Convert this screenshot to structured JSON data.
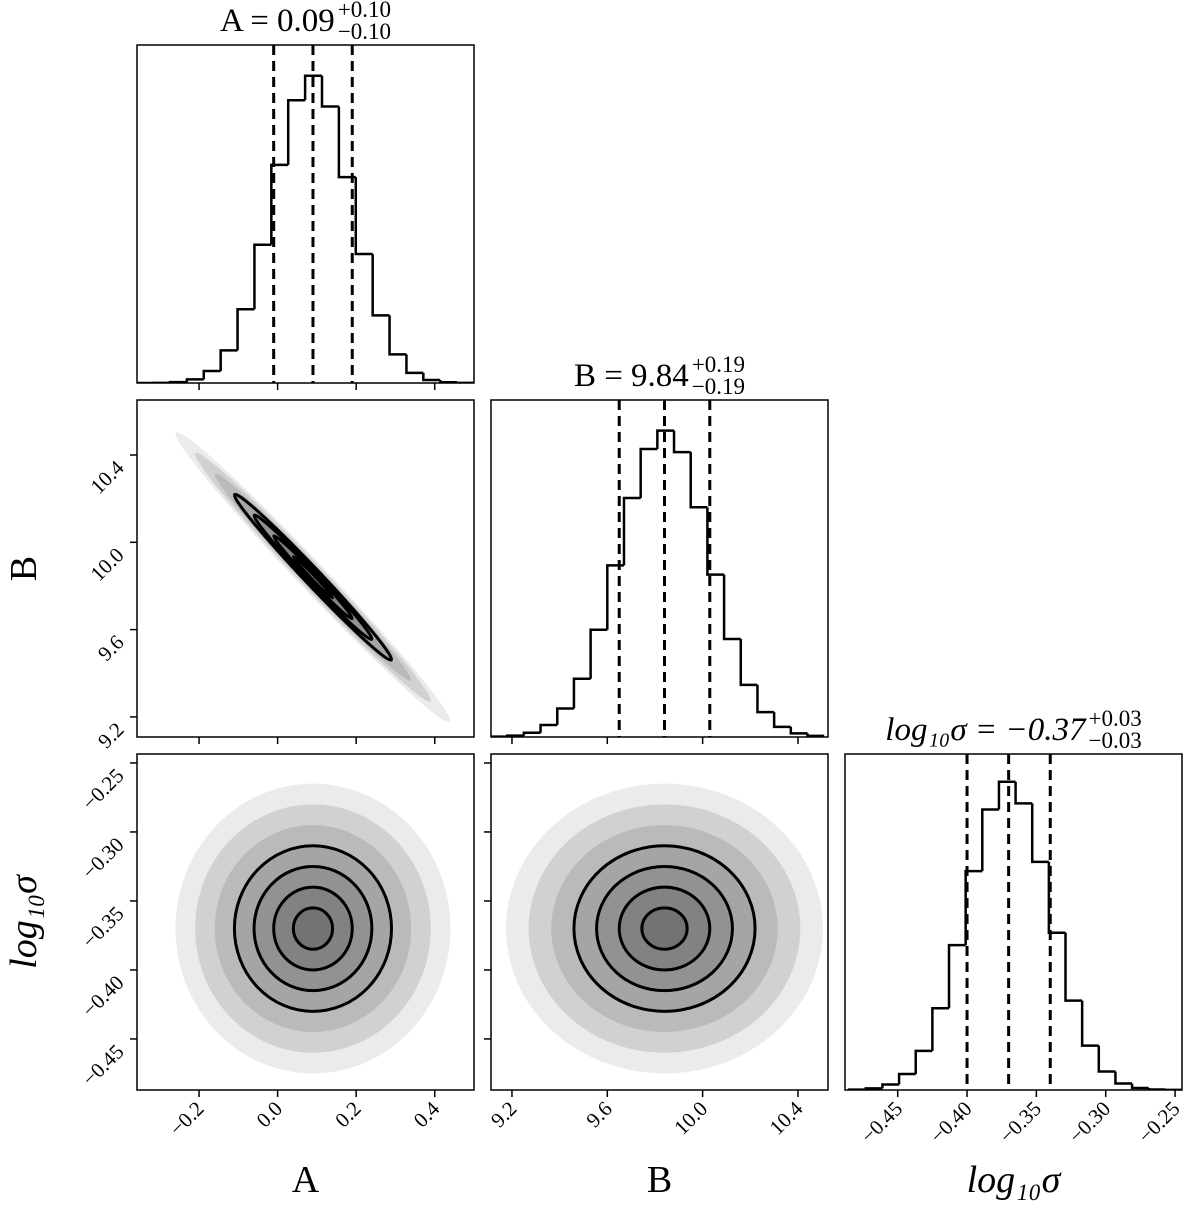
{
  "chart_data": [
    {
      "type": "histogram",
      "title": "A = 0.09",
      "title_plus": "+0.10",
      "title_minus": "−0.10",
      "bins": [
        -0.36,
        -0.317,
        -0.274,
        -0.231,
        -0.188,
        -0.145,
        -0.102,
        -0.059,
        -0.016,
        0.027,
        0.07,
        0.113,
        0.156,
        0.199,
        0.242,
        0.285,
        0.328,
        0.371,
        0.414,
        0.457,
        0.5
      ],
      "values": [
        0.0001,
        0.0006,
        0.003,
        0.012,
        0.039,
        0.106,
        0.24,
        0.45,
        0.71,
        0.92,
        1.0,
        0.9,
        0.67,
        0.42,
        0.22,
        0.093,
        0.033,
        0.0099,
        0.0024,
        0.0005
      ],
      "quantiles": [
        -0.01,
        0.09,
        0.19
      ],
      "xlim": [
        -0.358,
        0.5
      ],
      "ylim": [
        0,
        1.1
      ]
    },
    {
      "type": "contour",
      "x_mean": 0.09,
      "x_std": 0.1,
      "y_mean": 9.84,
      "y_std": 0.19,
      "correlation": -0.99,
      "levels": [
        0.5,
        1,
        1.5,
        2
      ],
      "density_levels": [
        3.5,
        3,
        2.5,
        2,
        1.5,
        1,
        0.5
      ],
      "xlim": [
        -0.358,
        0.5
      ],
      "ylim": [
        9.108,
        10.652
      ],
      "yticks": [
        9.2,
        9.6,
        {
          "value": 10.0,
          "label": "10.0"
        },
        10.4
      ],
      "ylabel": "B"
    },
    {
      "type": "histogram",
      "title": "B = 9.84",
      "title_plus": "+0.19",
      "title_minus": "−0.19",
      "bins": [
        9.11,
        9.18,
        9.25,
        9.32,
        9.39,
        9.46,
        9.53,
        9.6,
        9.67,
        9.74,
        9.81,
        9.88,
        9.95,
        10.02,
        10.09,
        10.16,
        10.23,
        10.3,
        10.37,
        10.44,
        10.51
      ],
      "values": [
        0.0012,
        0.0045,
        0.014,
        0.039,
        0.093,
        0.19,
        0.35,
        0.56,
        0.78,
        0.94,
        1.0,
        0.93,
        0.75,
        0.53,
        0.32,
        0.17,
        0.081,
        0.033,
        0.012,
        0.0038
      ],
      "quantiles": [
        9.65,
        9.84,
        10.03
      ],
      "xlim": [
        9.112,
        10.526
      ],
      "ylim": [
        0,
        1.1
      ]
    },
    {
      "type": "contour",
      "x_mean": 0.09,
      "x_std": 0.1,
      "y_mean": -0.37,
      "y_std": 0.03,
      "correlation": 0,
      "levels": [
        0.5,
        1,
        1.5,
        2
      ],
      "density_levels": [
        3.5,
        3,
        2.5,
        2,
        1.5,
        1,
        0.5
      ],
      "xlim": [
        -0.358,
        0.5
      ],
      "ylim": [
        -0.487,
        -0.2435
      ],
      "xticks": [
        {
          "value": -0.2,
          "label": "−0.2"
        },
        {
          "value": 0,
          "label": "0.0"
        },
        0.2,
        0.4
      ],
      "yticks": [
        {
          "value": -0.45,
          "label": "−0.45"
        },
        {
          "value": -0.4,
          "label": "−0.40"
        },
        {
          "value": -0.35,
          "label": "−0.35"
        },
        {
          "value": -0.3,
          "label": "−0.30"
        },
        {
          "value": -0.25,
          "label": "−0.25"
        }
      ],
      "xlabel": "A",
      "ylabel": "log₁₀σ"
    },
    {
      "type": "contour",
      "x_mean": 9.84,
      "x_std": 0.19,
      "y_mean": -0.37,
      "y_std": 0.03,
      "correlation": 0,
      "levels": [
        0.5,
        1,
        1.5,
        2
      ],
      "density_levels": [
        3.5,
        3,
        2.5,
        2,
        1.5,
        1,
        0.5
      ],
      "xlim": [
        9.112,
        10.526
      ],
      "ylim": [
        -0.487,
        -0.2435
      ],
      "xticks": [
        9.2,
        9.6,
        {
          "value": 10.0,
          "label": "10.0"
        },
        10.4
      ],
      "xlabel": "B"
    },
    {
      "type": "histogram",
      "title": "log₁₀σ = −0.37",
      "title_plus": "+0.03",
      "title_minus": "−0.03",
      "bins": [
        -0.485,
        -0.473,
        -0.461,
        -0.449,
        -0.437,
        -0.425,
        -0.413,
        -0.401,
        -0.389,
        -0.377,
        -0.365,
        -0.353,
        -0.341,
        -0.329,
        -0.317,
        -0.305,
        -0.293,
        -0.281,
        -0.269,
        -0.257,
        -0.245
      ],
      "values": [
        0.0014,
        0.0054,
        0.018,
        0.052,
        0.127,
        0.265,
        0.47,
        0.71,
        0.91,
        1.0,
        0.93,
        0.74,
        0.51,
        0.29,
        0.144,
        0.06,
        0.021,
        0.0066,
        0.0017,
        0.0004
      ],
      "quantiles": [
        -0.4,
        -0.37,
        -0.34
      ],
      "xlim": [
        -0.488,
        -0.245
      ],
      "ylim": [
        0,
        1.09
      ],
      "xticks": [
        {
          "value": -0.45,
          "label": "−0.45"
        },
        {
          "value": -0.4,
          "label": "−0.40"
        },
        {
          "value": -0.35,
          "label": "−0.35"
        },
        {
          "value": -0.3,
          "label": "−0.30"
        },
        {
          "value": -0.25,
          "label": "−0.25"
        }
      ],
      "xlabel": "log₁₀σ"
    }
  ]
}
